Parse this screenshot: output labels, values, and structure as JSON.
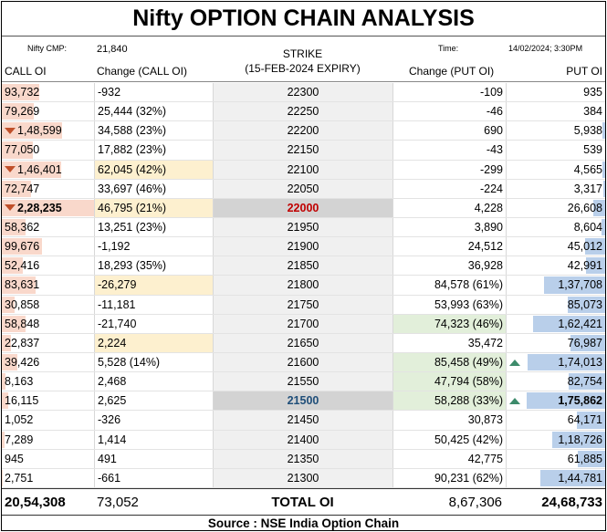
{
  "title": "Nifty OPTION CHAIN ANALYSIS",
  "header": {
    "cmp_label": "Nifty CMP:",
    "cmp_value": "21,840",
    "time_label": "Time:",
    "time_value": "14/02/2024; 3:30PM",
    "strike_label": "STRIKE",
    "expiry_label": "(15-FEB-2024 EXPIRY)",
    "call_oi": "CALL OI",
    "call_change": "Change (CALL OI)",
    "put_change": "Change (PUT OI)",
    "put_oi": "PUT OI"
  },
  "colors": {
    "call_bar": "#f9d8cb",
    "put_bar": "#b9cfea",
    "highlight_yellow": "#fdf0cf",
    "highlight_green": "#e2efda",
    "atm_strike": "#c00000",
    "max_pain_strike": "#1f4e79",
    "down_marker": "#c0502a",
    "up_marker": "#3d8b6b"
  },
  "rows": [
    {
      "call_oi": "93,732",
      "call_change": "-932",
      "strike": "22300",
      "put_change": "-109",
      "put_oi": "935",
      "call_fill": 0.41,
      "put_fill": 0.0
    },
    {
      "call_oi": "79,269",
      "call_change": "25,444 (32%)",
      "strike": "22250",
      "put_change": "-46",
      "put_oi": "384",
      "call_fill": 0.35,
      "put_fill": 0.0
    },
    {
      "call_oi": "1,48,599",
      "call_change": "34,588 (23%)",
      "strike": "22200",
      "put_change": "690",
      "put_oi": "5,938",
      "call_fill": 0.65,
      "put_fill": 0.03,
      "call_marker": "down"
    },
    {
      "call_oi": "77,050",
      "call_change": "17,882 (23%)",
      "strike": "22150",
      "put_change": "-43",
      "put_oi": "539",
      "call_fill": 0.34,
      "put_fill": 0.0
    },
    {
      "call_oi": "1,46,401",
      "call_change": "62,045 (42%)",
      "strike": "22100",
      "put_change": "-299",
      "put_oi": "4,565",
      "call_fill": 0.64,
      "put_fill": 0.03,
      "call_marker": "down",
      "call_change_hl": "yellow"
    },
    {
      "call_oi": "72,747",
      "call_change": "33,697 (46%)",
      "strike": "22050",
      "put_change": "-224",
      "put_oi": "3,317",
      "call_fill": 0.32,
      "put_fill": 0.02
    },
    {
      "call_oi": "2,28,235",
      "call_change": "46,795 (21%)",
      "strike": "22000",
      "put_change": "4,228",
      "put_oi": "26,608",
      "call_fill": 1.0,
      "put_fill": 0.15,
      "call_marker": "down",
      "call_change_hl": "yellow",
      "strike_style": "atm",
      "bold_call": true
    },
    {
      "call_oi": "58,362",
      "call_change": "13,251 (23%)",
      "strike": "21950",
      "put_change": "3,890",
      "put_oi": "8,604",
      "call_fill": 0.26,
      "put_fill": 0.05
    },
    {
      "call_oi": "99,676",
      "call_change": "-1,192",
      "strike": "21900",
      "put_change": "24,512",
      "put_oi": "45,012",
      "call_fill": 0.44,
      "put_fill": 0.26
    },
    {
      "call_oi": "52,416",
      "call_change": "18,293 (35%)",
      "strike": "21850",
      "put_change": "36,928",
      "put_oi": "42,991",
      "call_fill": 0.23,
      "put_fill": 0.24
    },
    {
      "call_oi": "83,631",
      "call_change": "-26,279",
      "strike": "21800",
      "put_change": "84,578 (61%)",
      "put_oi": "1,37,708",
      "call_fill": 0.37,
      "put_fill": 0.78,
      "call_change_hl": "yellow"
    },
    {
      "call_oi": "30,858",
      "call_change": "-11,181",
      "strike": "21750",
      "put_change": "53,993 (63%)",
      "put_oi": "85,073",
      "call_fill": 0.14,
      "put_fill": 0.48
    },
    {
      "call_oi": "58,848",
      "call_change": "-21,740",
      "strike": "21700",
      "put_change": "74,323 (46%)",
      "put_oi": "1,62,421",
      "call_fill": 0.26,
      "put_fill": 0.92,
      "put_change_hl": "green"
    },
    {
      "call_oi": "22,837",
      "call_change": "2,224",
      "strike": "21650",
      "put_change": "35,472",
      "put_oi": "76,987",
      "call_fill": 0.1,
      "put_fill": 0.44,
      "call_change_hl": "yellow"
    },
    {
      "call_oi": "39,426",
      "call_change": "5,528 (14%)",
      "strike": "21600",
      "put_change": "85,458 (49%)",
      "put_oi": "1,74,013",
      "call_fill": 0.17,
      "put_fill": 0.99,
      "put_change_hl": "green",
      "put_marker": "up"
    },
    {
      "call_oi": "8,163",
      "call_change": "2,468",
      "strike": "21550",
      "put_change": "47,794 (58%)",
      "put_oi": "82,754",
      "call_fill": 0.04,
      "put_fill": 0.47,
      "put_change_hl": "green"
    },
    {
      "call_oi": "16,115",
      "call_change": "2,625",
      "strike": "21500",
      "put_change": "58,288 (33%)",
      "put_oi": "1,75,862",
      "call_fill": 0.07,
      "put_fill": 1.0,
      "put_change_hl": "green",
      "put_marker": "up",
      "strike_style": "maxpain",
      "bold_put": true
    },
    {
      "call_oi": "1,052",
      "call_change": "-326",
      "strike": "21450",
      "put_change": "30,873",
      "put_oi": "64,171",
      "call_fill": 0.0,
      "put_fill": 0.36
    },
    {
      "call_oi": "7,289",
      "call_change": "1,414",
      "strike": "21400",
      "put_change": "50,425 (42%)",
      "put_oi": "1,18,726",
      "call_fill": 0.03,
      "put_fill": 0.68
    },
    {
      "call_oi": "945",
      "call_change": "491",
      "strike": "21350",
      "put_change": "42,775",
      "put_oi": "61,885",
      "call_fill": 0.0,
      "put_fill": 0.35
    },
    {
      "call_oi": "2,751",
      "call_change": "-661",
      "strike": "21300",
      "put_change": "90,231 (62%)",
      "put_oi": "1,44,781",
      "call_fill": 0.01,
      "put_fill": 0.82
    }
  ],
  "totals": {
    "call_oi": "20,54,308",
    "call_change": "73,052",
    "label": "TOTAL OI",
    "put_change": "8,67,306",
    "put_oi": "24,68,733"
  },
  "source": "Source : NSE India Option Chain"
}
